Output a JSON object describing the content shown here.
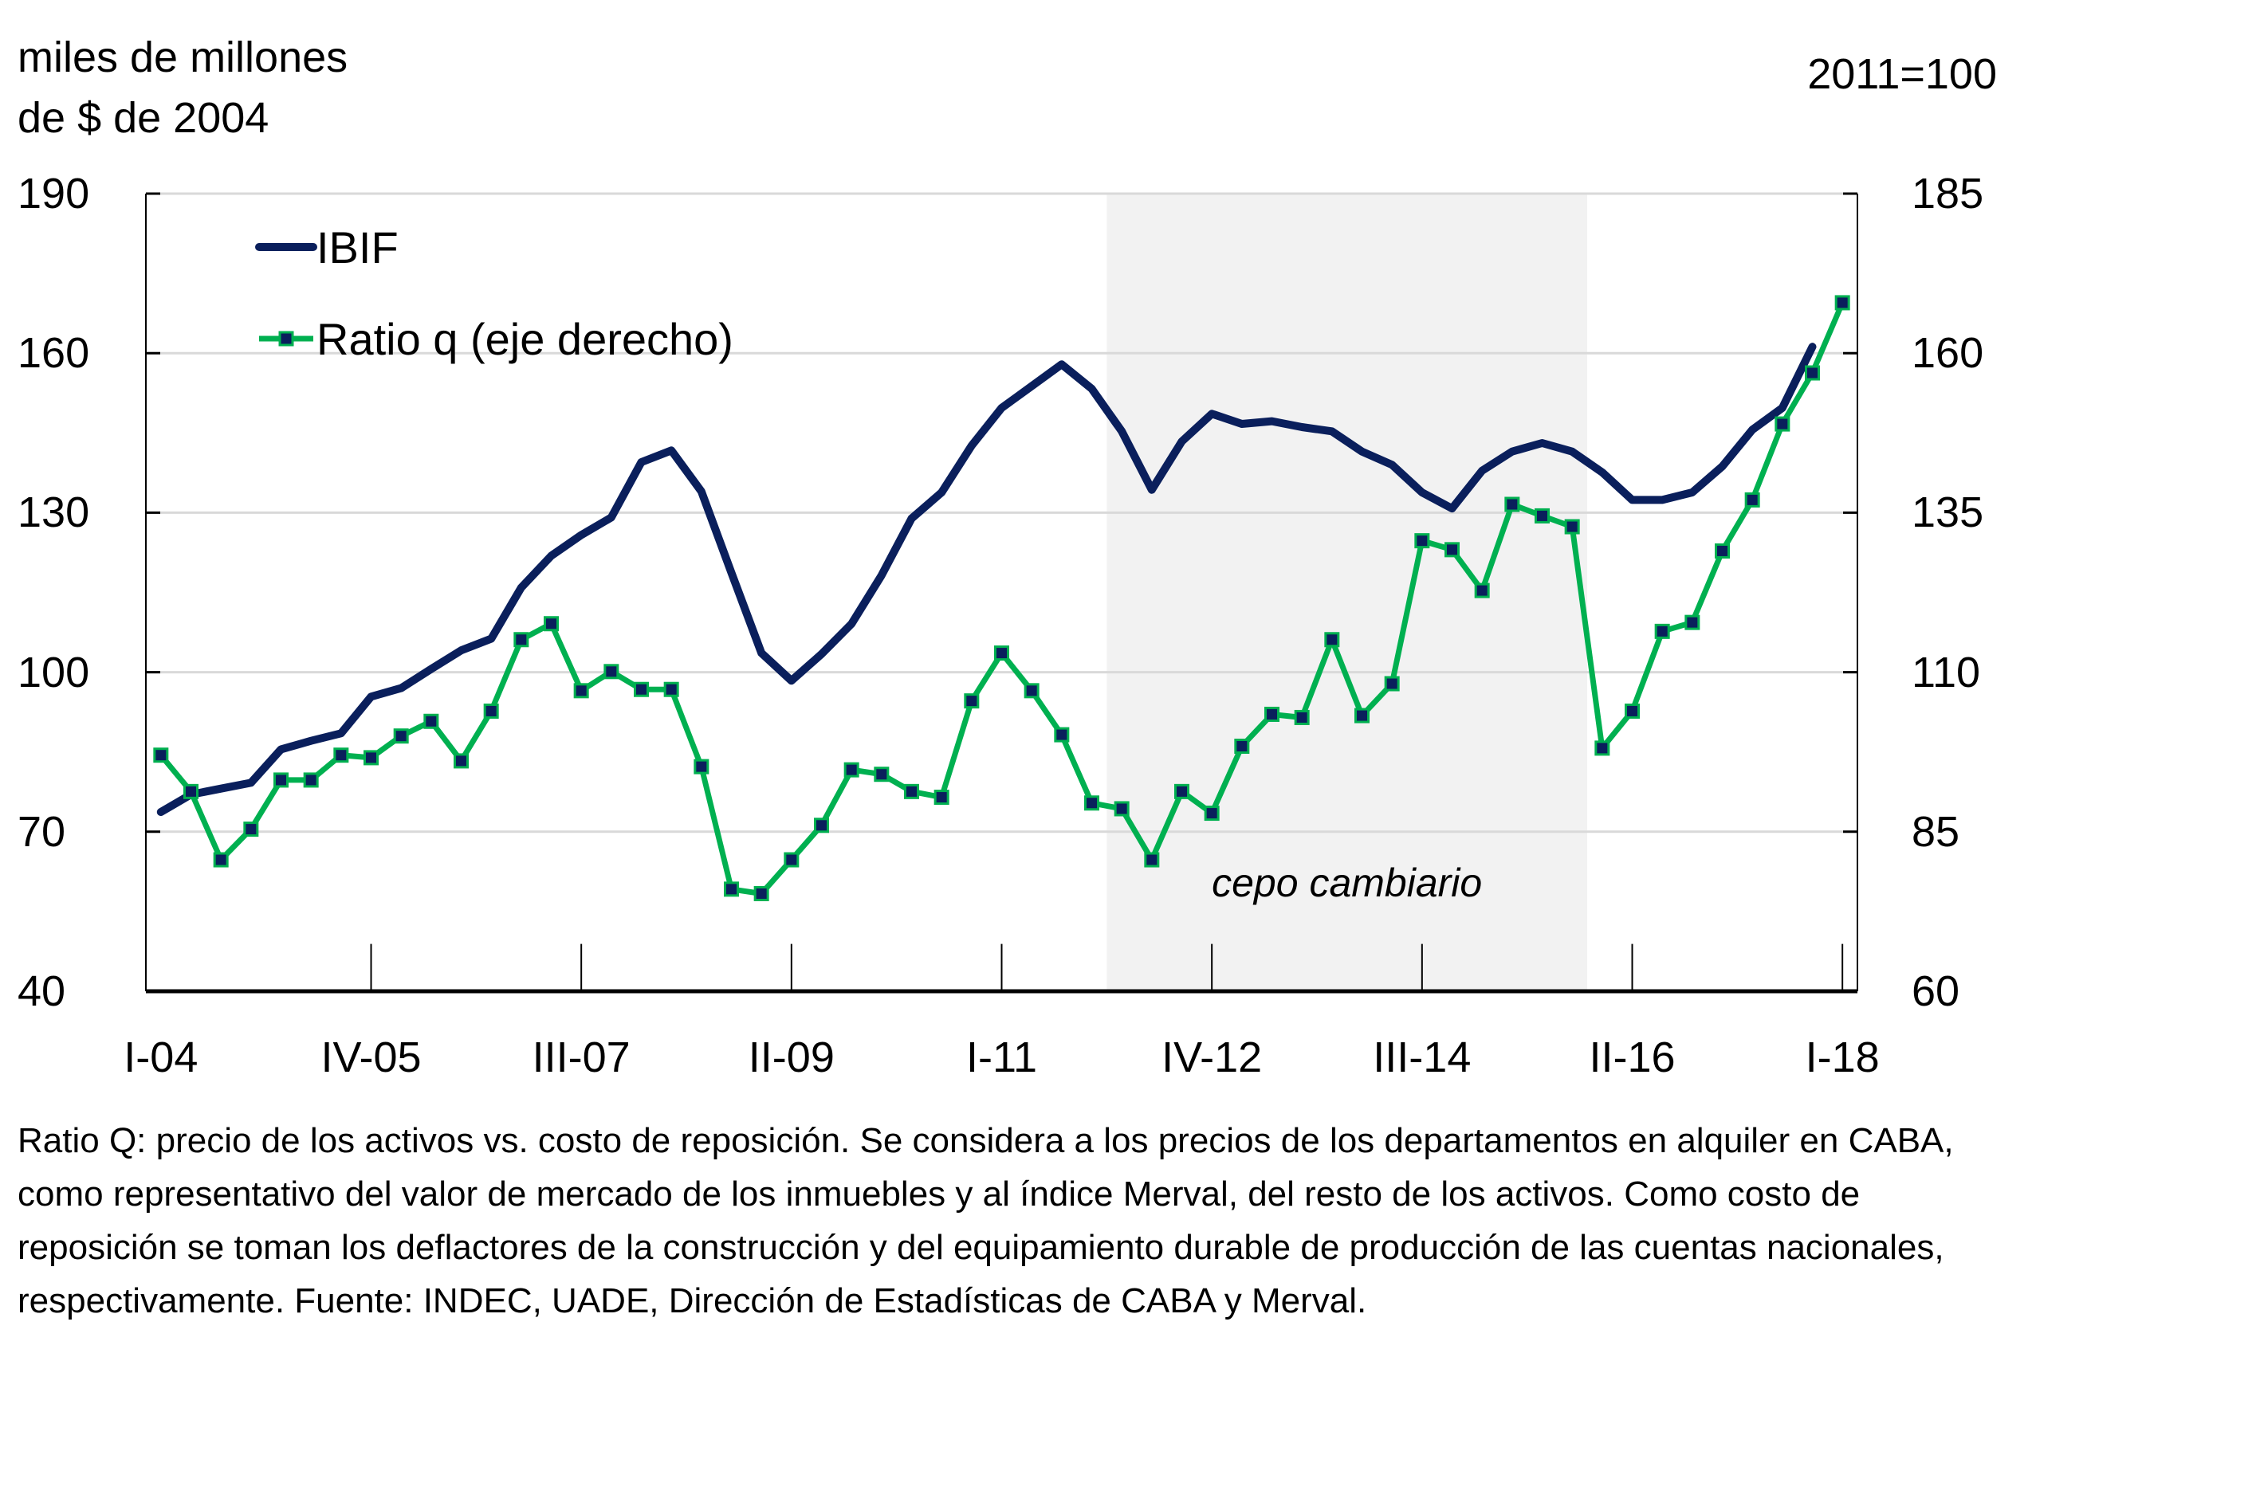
{
  "chart_data": {
    "type": "line",
    "title": "",
    "left_axis": {
      "label": "miles de millones\nde $ de 2004",
      "range": [
        40,
        190
      ],
      "ticks": [
        40,
        70,
        100,
        130,
        160,
        190
      ]
    },
    "right_axis": {
      "label": "2011=100",
      "range": [
        60,
        185
      ],
      "ticks": [
        60,
        85,
        110,
        135,
        160,
        185
      ]
    },
    "x_tick_labels": [
      "I-04",
      "IV-05",
      "III-07",
      "II-09",
      "I-11",
      "IV-12",
      "III-14",
      "II-16",
      "I-18"
    ],
    "x_tick_every": 7,
    "x_count": 57,
    "x_start": "I-04",
    "x_end": "I-18",
    "grid": "horizontal",
    "legend_position": "top-left",
    "series": [
      {
        "name": "IBIF",
        "axis": "left",
        "color": "#0a1f5c",
        "markers": false,
        "values": [
          73.7,
          77.0,
          78.1,
          79.2,
          85.5,
          87.1,
          88.5,
          95.4,
          97.0,
          100.6,
          104.1,
          106.3,
          115.9,
          121.9,
          125.8,
          129.1,
          139.5,
          141.7,
          134.0,
          118.7,
          103.6,
          98.4,
          103.4,
          109.1,
          118.2,
          128.9,
          133.8,
          142.6,
          149.7,
          153.8,
          157.9,
          153.3,
          145.3,
          134.3,
          143.4,
          148.6,
          146.7,
          147.2,
          146.1,
          145.3,
          141.5,
          139.0,
          133.8,
          130.8,
          137.9,
          141.5,
          143.1,
          141.5,
          137.6,
          132.4,
          132.4,
          133.8,
          138.7,
          145.6,
          149.7,
          161.2
        ]
      },
      {
        "name": "Ratio q (eje derecho)",
        "axis": "right",
        "color": "#00b050",
        "marker_color": "#0a1f5c",
        "markers": true,
        "values": [
          97.0,
          91.3,
          80.6,
          85.4,
          93.1,
          93.1,
          97.0,
          96.6,
          100.0,
          102.3,
          96.1,
          103.9,
          115.1,
          117.6,
          107.1,
          110.1,
          107.3,
          107.3,
          95.2,
          76.0,
          75.3,
          80.6,
          86.0,
          94.7,
          94.0,
          91.3,
          90.4,
          105.5,
          113.0,
          107.1,
          100.2,
          89.5,
          88.6,
          80.6,
          91.3,
          87.9,
          98.4,
          103.4,
          102.9,
          115.1,
          103.2,
          108.2,
          130.6,
          129.2,
          122.8,
          136.3,
          134.5,
          132.8,
          98.1,
          103.9,
          116.4,
          117.8,
          129.0,
          137.0,
          148.9,
          156.9,
          167.9
        ]
      }
    ],
    "shaded_region": {
      "label": "cepo cambiario",
      "from_index": 31.5,
      "to_index": 47.5,
      "color": "#f2f2f2"
    }
  },
  "note": "Ratio Q: precio de los activos vs. costo de reposición. Se considera a los precios de los departamentos en alquiler en CABA, como representativo del valor de mercado de los inmuebles y al índice Merval, del resto de los activos. Como costo de reposición se toman los deflactores de la construcción y del equipamiento durable de producción de las cuentas nacionales, respectivamente. Fuente: INDEC, UADE, Dirección de Estadísticas de CABA y Merval."
}
